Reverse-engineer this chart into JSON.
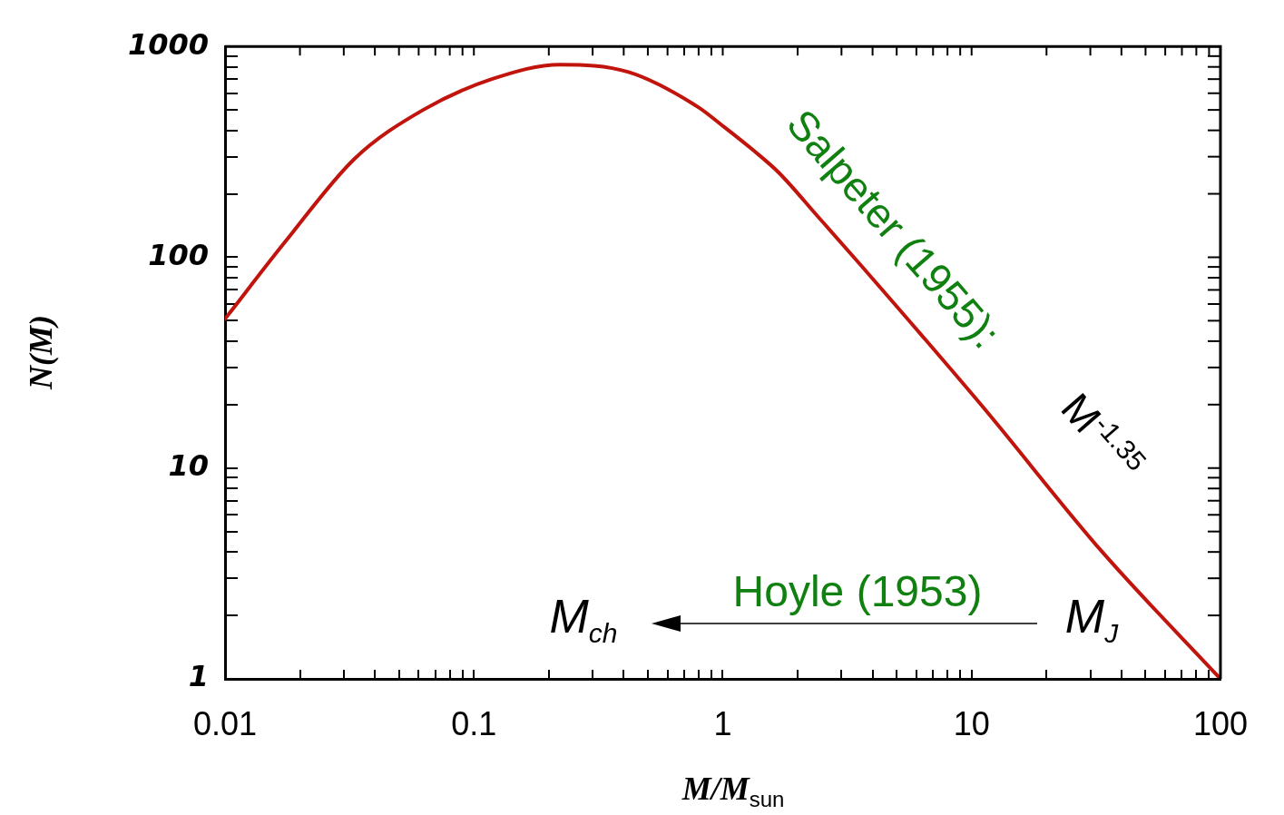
{
  "chart_data": {
    "type": "line",
    "xlabel": "M/M$_{sun}$",
    "ylabel": "N(M)",
    "log": "xy",
    "marker": "none",
    "legend": false,
    "x": [
      0.01,
      0.0176,
      0.0332,
      0.0625,
      0.118,
      0.222,
      0.418,
      0.79,
      1,
      1.33,
      1.68,
      2.4,
      3.55,
      10.9,
      33.5,
      100
    ],
    "series": [
      {
        "color": "#c0140c",
        "values": [
          51,
          120,
          294,
          500,
          700,
          820,
          756,
          519,
          420,
          321,
          252,
          157,
          93,
          20,
          4.0,
          1
        ]
      }
    ],
    "xlim": [
      0.01,
      100
    ],
    "ylim": [
      1,
      1000
    ],
    "xticks": [
      0.01,
      {
        "value": 0.02,
        "label": null
      },
      {
        "value": 0.03,
        "label": null
      },
      {
        "value": 0.04,
        "label": null
      },
      {
        "value": 0.05,
        "label": null
      },
      {
        "value": 0.06,
        "label": null
      },
      {
        "value": 0.07,
        "label": null
      },
      {
        "value": 0.08,
        "label": null
      },
      {
        "value": 0.09,
        "label": null
      },
      0.1,
      {
        "value": 0.2,
        "label": null
      },
      {
        "value": 0.3,
        "label": null
      },
      {
        "value": 0.4,
        "label": null
      },
      {
        "value": 0.5,
        "label": null
      },
      {
        "value": 0.6,
        "label": null
      },
      {
        "value": 0.7,
        "label": null
      },
      {
        "value": 0.8,
        "label": null
      },
      {
        "value": 0.9,
        "label": null
      },
      1,
      {
        "value": 2,
        "label": null
      },
      {
        "value": 3,
        "label": null
      },
      {
        "value": 4,
        "label": null
      },
      {
        "value": 5,
        "label": null
      },
      {
        "value": 6,
        "label": null
      },
      {
        "value": 7,
        "label": null
      },
      {
        "value": 8,
        "label": null
      },
      {
        "value": 9,
        "label": null
      },
      10,
      {
        "value": 20,
        "label": null
      },
      {
        "value": 30,
        "label": null
      },
      {
        "value": 40,
        "label": null
      },
      {
        "value": 50,
        "label": null
      },
      {
        "value": 60,
        "label": null
      },
      {
        "value": 70,
        "label": null
      },
      {
        "value": 80,
        "label": null
      },
      {
        "value": 90,
        "label": null
      },
      100
    ],
    "yticks": [
      1,
      {
        "value": 2,
        "label": null
      },
      {
        "value": 3,
        "label": null
      },
      {
        "value": 4,
        "label": null
      },
      {
        "value": 5,
        "label": null
      },
      {
        "value": 6,
        "label": null
      },
      {
        "value": 7,
        "label": null
      },
      {
        "value": 8,
        "label": null
      },
      {
        "value": 9,
        "label": null
      },
      10,
      {
        "value": 20,
        "label": null
      },
      {
        "value": 30,
        "label": null
      },
      {
        "value": 40,
        "label": null
      },
      {
        "value": 50,
        "label": null
      },
      {
        "value": 60,
        "label": null
      },
      {
        "value": 70,
        "label": null
      },
      {
        "value": 80,
        "label": null
      },
      {
        "value": 90,
        "label": null
      },
      100,
      {
        "value": 200,
        "label": null
      },
      {
        "value": 300,
        "label": null
      },
      {
        "value": 400,
        "label": null
      },
      {
        "value": 500,
        "label": null
      },
      {
        "value": 600,
        "label": null
      },
      {
        "value": 700,
        "label": null
      },
      {
        "value": 800,
        "label": null
      },
      {
        "value": 900,
        "label": null
      },
      1000
    ],
    "annotations": [
      "Salpeter (1955):",
      "M$^{-1.35}$",
      "Hoyle (1953)",
      "M$_{ch}$",
      "M$_{J}$"
    ]
  }
}
